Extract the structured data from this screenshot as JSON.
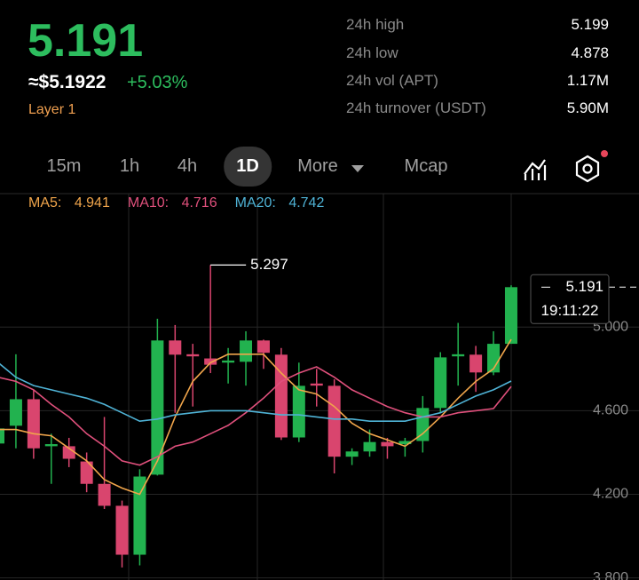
{
  "header": {
    "price": "5.191",
    "fiat_price": "≈$5.1922",
    "change": "+5.03%",
    "tag": "Layer 1"
  },
  "stats": [
    {
      "label": "24h high",
      "value": "5.199"
    },
    {
      "label": "24h low",
      "value": "4.878"
    },
    {
      "label": "24h vol (APT)",
      "value": "1.17M"
    },
    {
      "label": "24h turnover (USDT)",
      "value": "5.90M"
    }
  ],
  "tabs": [
    "15m",
    "1h",
    "4h",
    "1D",
    "More",
    "Mcap"
  ],
  "selected_tab": "1D",
  "chart_data": {
    "type": "candlestick",
    "up_color": "#22b24f",
    "down_color": "#d9456e",
    "open": [
      4.443,
      4.528,
      4.655,
      4.43,
      4.43,
      4.357,
      4.25,
      4.145,
      3.911,
      4.294,
      4.936,
      4.87,
      4.85,
      4.83,
      4.834,
      4.936,
      4.868,
      4.472,
      4.73,
      4.719,
      4.38,
      4.405,
      4.45,
      4.44,
      4.455,
      4.613,
      4.86,
      4.868,
      4.783,
      4.92
    ],
    "high": [
      4.57,
      4.87,
      4.7,
      4.49,
      4.47,
      4.4,
      4.57,
      4.17,
      4.32,
      5.04,
      5.01,
      4.92,
      5.297,
      4.9,
      4.98,
      4.94,
      4.9,
      4.83,
      4.8,
      4.75,
      4.42,
      4.51,
      4.47,
      4.47,
      4.67,
      4.88,
      5.02,
      4.91,
      4.98,
      5.2
    ],
    "low": [
      4.42,
      4.42,
      4.37,
      4.25,
      4.33,
      4.21,
      4.13,
      3.85,
      3.86,
      4.29,
      4.59,
      4.62,
      4.78,
      4.73,
      4.72,
      4.8,
      4.46,
      4.45,
      4.62,
      4.3,
      4.34,
      4.38,
      4.37,
      4.38,
      4.4,
      4.59,
      4.72,
      4.69,
      4.77,
      4.92
    ],
    "close": [
      4.515,
      4.655,
      4.42,
      4.44,
      4.37,
      4.25,
      4.145,
      3.911,
      4.285,
      4.936,
      4.868,
      4.86,
      4.82,
      4.84,
      4.936,
      4.877,
      4.472,
      4.719,
      4.72,
      4.38,
      4.405,
      4.45,
      4.43,
      4.455,
      4.613,
      4.855,
      4.87,
      4.783,
      4.92,
      5.191
    ],
    "series": [
      {
        "name": "MA5",
        "color": "#f0a54b",
        "values": [
          4.51,
          4.51,
          4.49,
          4.48,
          4.42,
          4.36,
          4.27,
          4.23,
          4.2,
          4.36,
          4.57,
          4.74,
          4.83,
          4.87,
          4.87,
          4.87,
          4.78,
          4.7,
          4.68,
          4.62,
          4.54,
          4.49,
          4.46,
          4.43,
          4.49,
          4.57,
          4.66,
          4.74,
          4.8,
          4.941
        ]
      },
      {
        "name": "MA10",
        "color": "#e0507c",
        "values": [
          4.76,
          4.74,
          4.7,
          4.63,
          4.57,
          4.49,
          4.43,
          4.36,
          4.34,
          4.38,
          4.43,
          4.45,
          4.49,
          4.53,
          4.59,
          4.66,
          4.74,
          4.78,
          4.81,
          4.76,
          4.7,
          4.66,
          4.62,
          4.59,
          4.57,
          4.57,
          4.59,
          4.6,
          4.61,
          4.716
        ]
      },
      {
        "name": "MA20",
        "color": "#4fb3d6",
        "values": [
          4.83,
          4.76,
          4.72,
          4.7,
          4.68,
          4.66,
          4.63,
          4.59,
          4.55,
          4.56,
          4.58,
          4.59,
          4.6,
          4.6,
          4.6,
          4.59,
          4.58,
          4.58,
          4.57,
          4.56,
          4.56,
          4.55,
          4.55,
          4.55,
          4.57,
          4.59,
          4.63,
          4.67,
          4.7,
          4.742
        ]
      }
    ],
    "ylim": [
      3.79,
      5.63
    ],
    "yticks": [
      {
        "value": 3.8,
        "label": "3.800"
      },
      {
        "value": 4.2,
        "label": "4.200"
      },
      {
        "value": 4.6,
        "label": "4.600"
      },
      {
        "value": 5,
        "label": "5.000"
      }
    ],
    "grid": true,
    "countdown": "19:11:22"
  }
}
